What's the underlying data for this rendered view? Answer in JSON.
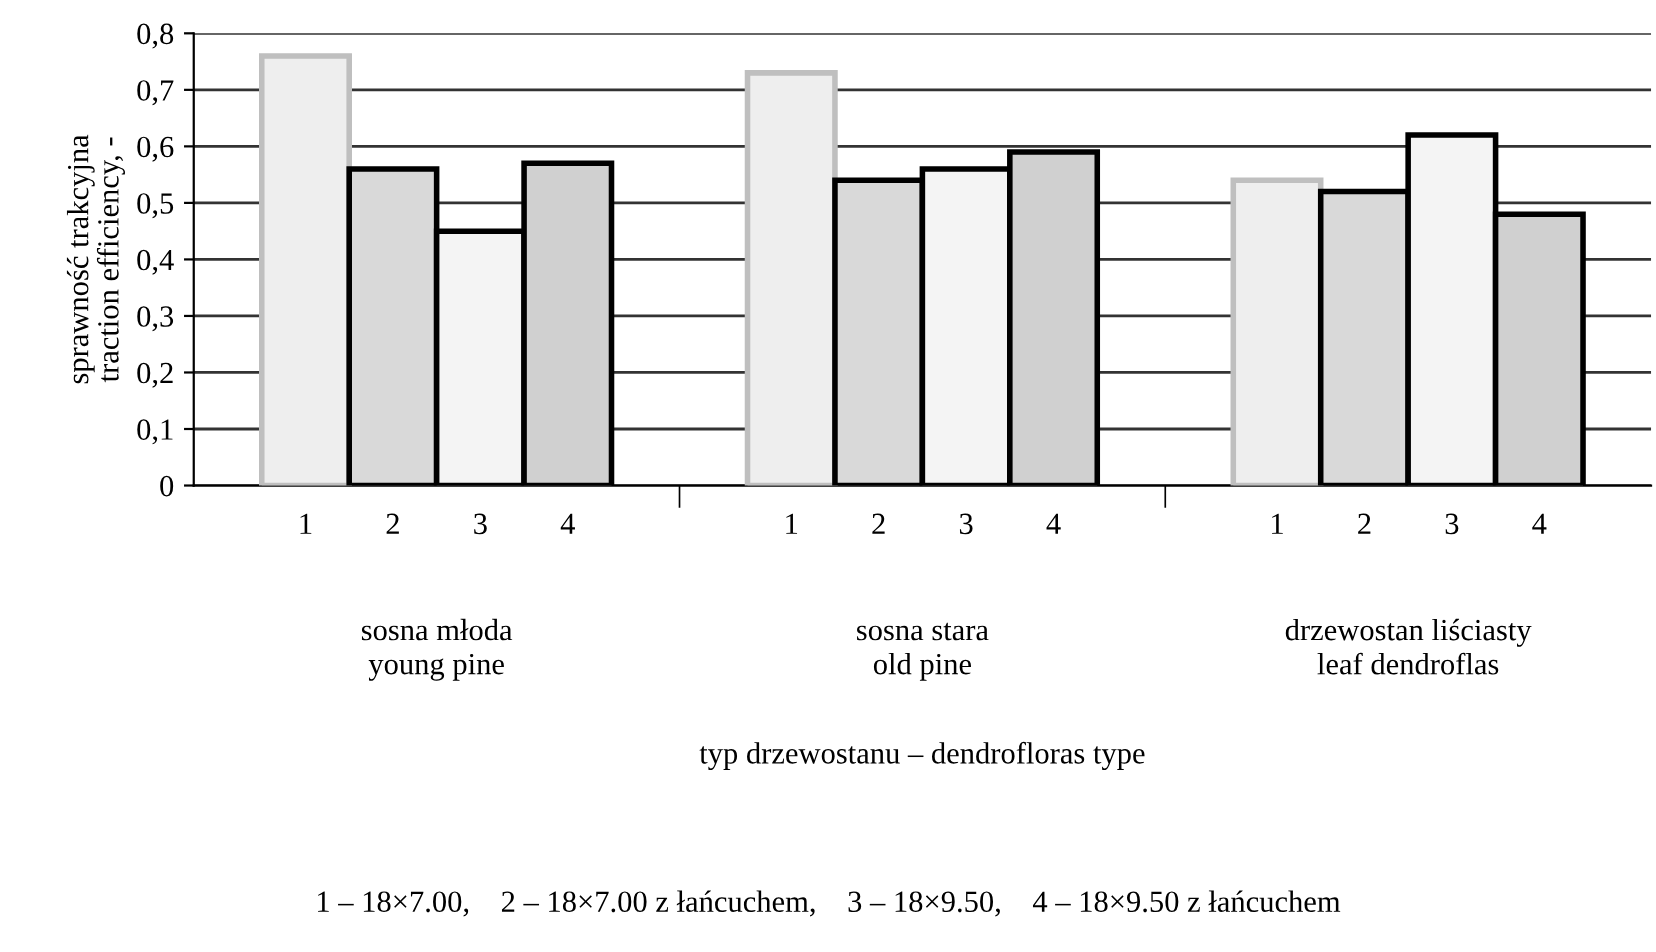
{
  "chart_data": {
    "type": "bar",
    "categories": [
      "sosna młoda\nyoung pine",
      "sosna stara\nold pine",
      "drzewostan liściasty\nleaf dendroflas"
    ],
    "series": [
      {
        "name": "1",
        "color": "#eeeeee",
        "values": [
          0.76,
          0.73,
          0.54
        ]
      },
      {
        "name": "2",
        "color": "#d9d9d9",
        "values": [
          0.56,
          0.54,
          0.52
        ]
      },
      {
        "name": "3",
        "color": "#f4f4f4",
        "values": [
          0.45,
          0.56,
          0.62
        ]
      },
      {
        "name": "4",
        "color": "#d0d0d0",
        "values": [
          0.57,
          0.59,
          0.48
        ]
      }
    ],
    "ylabel": "sprawność trakcyjna\ntraction efficiency, -",
    "xlabel": "typ drzewostanu – dendrofloras type",
    "ylim": [
      0,
      0.8
    ],
    "yticks": [
      0,
      {
        "value": 0.1,
        "label": "0,1"
      },
      {
        "value": 0.2,
        "label": "0,2"
      },
      {
        "value": 0.3,
        "label": "0,3"
      },
      {
        "value": 0.4,
        "label": "0,4"
      },
      {
        "value": 0.5,
        "label": "0,5"
      },
      {
        "value": 0.6,
        "label": "0,6"
      },
      {
        "value": 0.7,
        "label": "0,7"
      },
      {
        "value": 0.8,
        "label": "0,8"
      }
    ],
    "grid": "y",
    "legend": false,
    "annotations": [
      "1 – 18×7.00,    2 – 18×7.00 z łańcuchem,    3 – 18×9.50,    4 – 18×9.50 z łańcuchem"
    ]
  }
}
